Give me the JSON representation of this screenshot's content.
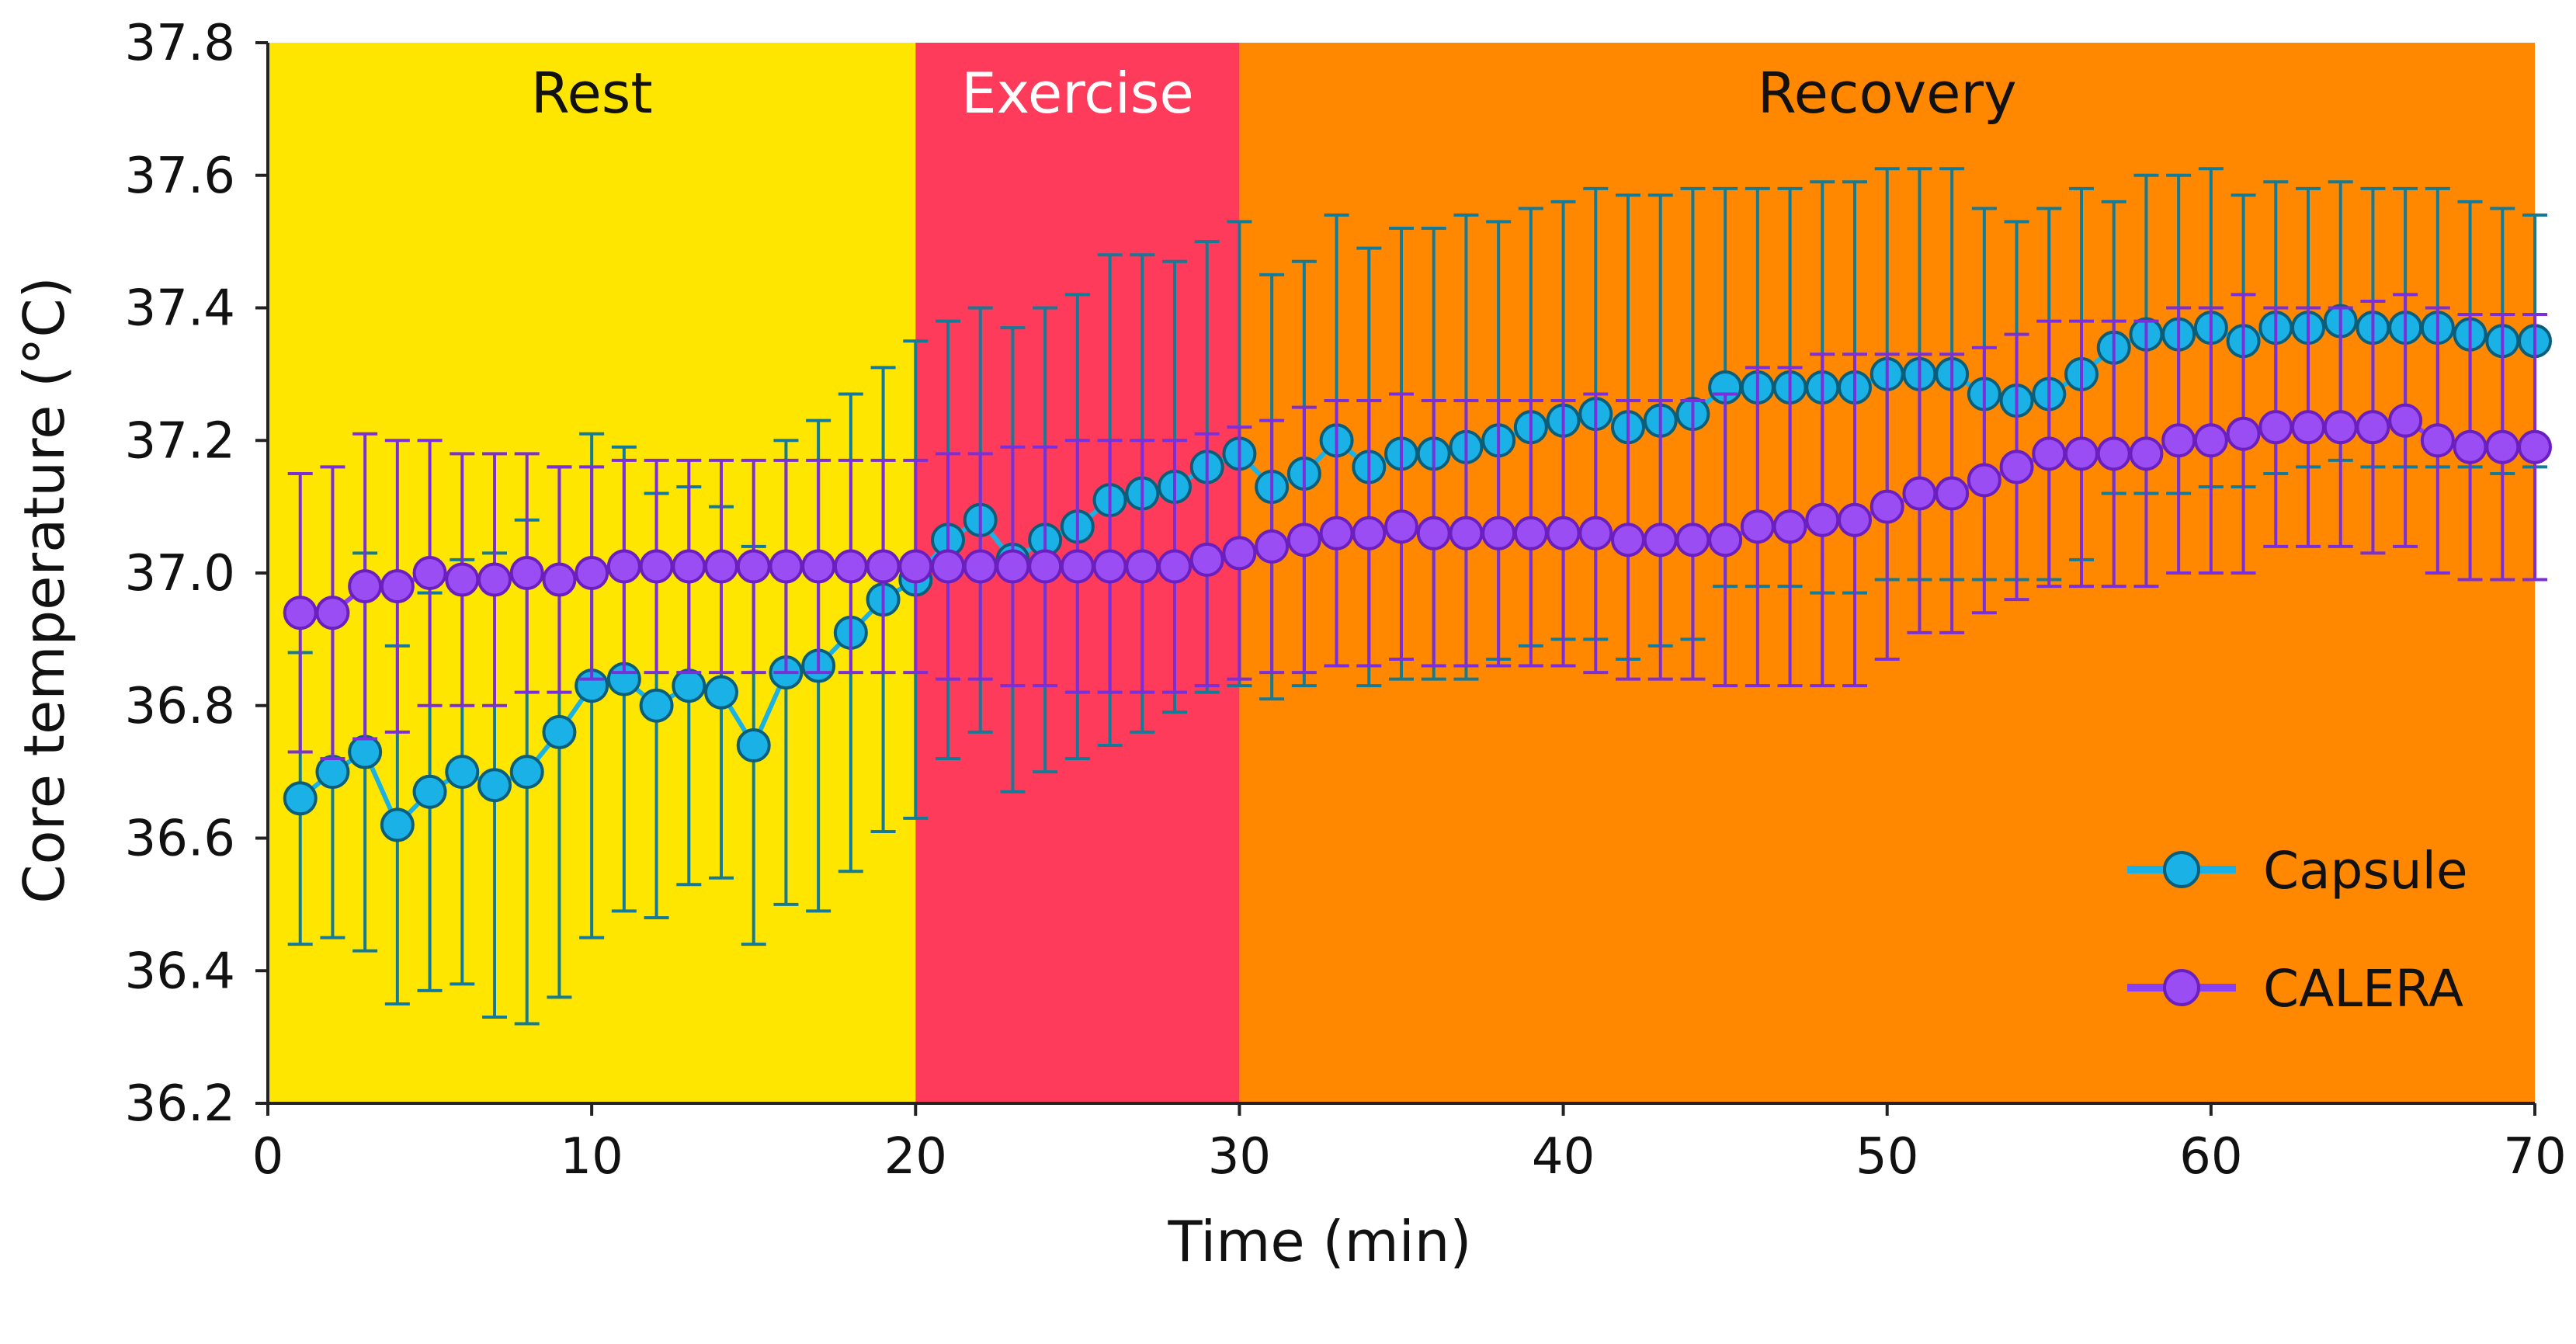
{
  "chart_data": {
    "type": "line",
    "title": "",
    "xlabel": "Time (min)",
    "ylabel": "Core temperature (°C)",
    "xlim": [
      0,
      70
    ],
    "ylim": [
      36.2,
      37.8
    ],
    "x_ticks": [
      "0",
      "10",
      "20",
      "30",
      "40",
      "50",
      "60",
      "70"
    ],
    "y_ticks": [
      "36.2",
      "36.4",
      "36.6",
      "36.8",
      "37.0",
      "37.2",
      "37.4",
      "37.6",
      "37.8"
    ],
    "grid": false,
    "legend_position": "bottom-right",
    "phases": [
      {
        "label": "Rest",
        "start": 0,
        "end": 20,
        "color": "#FFE600"
      },
      {
        "label": "Exercise",
        "start": 20,
        "end": 30,
        "color": "#FF3B5C"
      },
      {
        "label": "Recovery",
        "start": 30,
        "end": 70,
        "color": "#FF8800"
      }
    ],
    "series": [
      {
        "name": "Capsule",
        "line_color": "#1AB2E6",
        "marker_color": "#1AB2E6",
        "marker_edge": "#0B5E7A",
        "error_color": "#147A96",
        "x": [
          1,
          2,
          3,
          4,
          5,
          6,
          7,
          8,
          9,
          10,
          11,
          12,
          13,
          14,
          15,
          16,
          17,
          18,
          19,
          20,
          21,
          22,
          23,
          24,
          25,
          26,
          27,
          28,
          29,
          30,
          31,
          32,
          33,
          34,
          35,
          36,
          37,
          38,
          39,
          40,
          41,
          42,
          43,
          44,
          45,
          46,
          47,
          48,
          49,
          50,
          51,
          52,
          53,
          54,
          55,
          56,
          57,
          58,
          59,
          60,
          61,
          62,
          63,
          64,
          65,
          66,
          67,
          68,
          69,
          70
        ],
        "values": [
          36.66,
          36.7,
          36.73,
          36.62,
          36.67,
          36.7,
          36.68,
          36.7,
          36.76,
          36.83,
          36.84,
          36.8,
          36.83,
          36.82,
          36.74,
          36.85,
          36.86,
          36.91,
          36.96,
          36.99,
          37.05,
          37.08,
          37.02,
          37.05,
          37.07,
          37.11,
          37.12,
          37.13,
          37.16,
          37.18,
          37.13,
          37.15,
          37.2,
          37.16,
          37.18,
          37.18,
          37.19,
          37.2,
          37.22,
          37.23,
          37.24,
          37.22,
          37.23,
          37.24,
          37.28,
          37.28,
          37.28,
          37.28,
          37.28,
          37.3,
          37.3,
          37.3,
          37.27,
          37.26,
          37.27,
          37.3,
          37.34,
          37.36,
          37.36,
          37.37,
          37.35,
          37.37,
          37.37,
          37.38,
          37.37,
          37.37,
          37.37,
          37.36,
          37.35,
          37.35
        ],
        "errors": [
          0.22,
          0.25,
          0.3,
          0.27,
          0.3,
          0.32,
          0.35,
          0.38,
          0.4,
          0.38,
          0.35,
          0.32,
          0.3,
          0.28,
          0.3,
          0.35,
          0.37,
          0.36,
          0.35,
          0.36,
          0.33,
          0.32,
          0.35,
          0.35,
          0.35,
          0.37,
          0.36,
          0.34,
          0.34,
          0.35,
          0.32,
          0.32,
          0.34,
          0.33,
          0.34,
          0.34,
          0.35,
          0.33,
          0.33,
          0.33,
          0.34,
          0.35,
          0.34,
          0.34,
          0.3,
          0.3,
          0.3,
          0.31,
          0.31,
          0.31,
          0.31,
          0.31,
          0.28,
          0.27,
          0.28,
          0.28,
          0.22,
          0.24,
          0.24,
          0.24,
          0.22,
          0.22,
          0.21,
          0.21,
          0.21,
          0.21,
          0.21,
          0.2,
          0.2,
          0.19
        ]
      },
      {
        "name": "CALERA",
        "line_color": "#8A3FF0",
        "marker_color": "#9A4DF2",
        "marker_edge": "#6A1FBE",
        "error_color": "#7A2FD8",
        "x": [
          1,
          2,
          3,
          4,
          5,
          6,
          7,
          8,
          9,
          10,
          11,
          12,
          13,
          14,
          15,
          16,
          17,
          18,
          19,
          20,
          21,
          22,
          23,
          24,
          25,
          26,
          27,
          28,
          29,
          30,
          31,
          32,
          33,
          34,
          35,
          36,
          37,
          38,
          39,
          40,
          41,
          42,
          43,
          44,
          45,
          46,
          47,
          48,
          49,
          50,
          51,
          52,
          53,
          54,
          55,
          56,
          57,
          58,
          59,
          60,
          61,
          62,
          63,
          64,
          65,
          66,
          67,
          68,
          69,
          70
        ],
        "values": [
          36.94,
          36.94,
          36.98,
          36.98,
          37.0,
          36.99,
          36.99,
          37.0,
          36.99,
          37.0,
          37.01,
          37.01,
          37.01,
          37.01,
          37.01,
          37.01,
          37.01,
          37.01,
          37.01,
          37.01,
          37.01,
          37.01,
          37.01,
          37.01,
          37.01,
          37.01,
          37.01,
          37.01,
          37.02,
          37.03,
          37.04,
          37.05,
          37.06,
          37.06,
          37.07,
          37.06,
          37.06,
          37.06,
          37.06,
          37.06,
          37.06,
          37.05,
          37.05,
          37.05,
          37.05,
          37.07,
          37.07,
          37.08,
          37.08,
          37.1,
          37.12,
          37.12,
          37.14,
          37.16,
          37.18,
          37.18,
          37.18,
          37.18,
          37.2,
          37.2,
          37.21,
          37.22,
          37.22,
          37.22,
          37.22,
          37.23,
          37.2,
          37.19,
          37.19,
          37.19
        ],
        "errors": [
          0.21,
          0.22,
          0.23,
          0.22,
          0.2,
          0.19,
          0.19,
          0.18,
          0.17,
          0.16,
          0.16,
          0.16,
          0.16,
          0.16,
          0.16,
          0.16,
          0.16,
          0.16,
          0.16,
          0.16,
          0.17,
          0.17,
          0.18,
          0.18,
          0.19,
          0.19,
          0.19,
          0.19,
          0.19,
          0.19,
          0.19,
          0.2,
          0.2,
          0.2,
          0.2,
          0.2,
          0.2,
          0.2,
          0.2,
          0.2,
          0.21,
          0.21,
          0.21,
          0.21,
          0.22,
          0.24,
          0.24,
          0.25,
          0.25,
          0.23,
          0.21,
          0.21,
          0.2,
          0.2,
          0.2,
          0.2,
          0.2,
          0.2,
          0.2,
          0.2,
          0.21,
          0.18,
          0.18,
          0.18,
          0.19,
          0.19,
          0.2,
          0.2,
          0.2,
          0.2
        ]
      }
    ]
  }
}
